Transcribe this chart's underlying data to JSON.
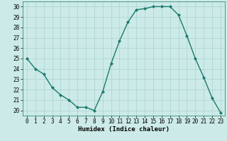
{
  "x": [
    0,
    1,
    2,
    3,
    4,
    5,
    6,
    7,
    8,
    9,
    10,
    11,
    12,
    13,
    14,
    15,
    16,
    17,
    18,
    19,
    20,
    21,
    22,
    23
  ],
  "y": [
    25.0,
    24.0,
    23.5,
    22.2,
    21.5,
    21.0,
    20.3,
    20.3,
    20.0,
    21.8,
    24.5,
    26.7,
    28.5,
    29.7,
    29.8,
    30.0,
    30.0,
    30.0,
    29.2,
    27.2,
    25.0,
    23.2,
    21.2,
    19.8
  ],
  "line_color": "#1a7a6e",
  "marker": "D",
  "marker_size": 2.0,
  "bg_color": "#cceae7",
  "grid_color": "#aad4cf",
  "xlabel": "Humidex (Indice chaleur)",
  "xlim": [
    -0.5,
    23.5
  ],
  "ylim": [
    19.5,
    30.5
  ],
  "yticks": [
    20,
    21,
    22,
    23,
    24,
    25,
    26,
    27,
    28,
    29,
    30
  ],
  "xticks": [
    0,
    1,
    2,
    3,
    4,
    5,
    6,
    7,
    8,
    9,
    10,
    11,
    12,
    13,
    14,
    15,
    16,
    17,
    18,
    19,
    20,
    21,
    22,
    23
  ],
  "xlabel_fontsize": 6.5,
  "tick_fontsize": 5.5,
  "line_width": 1.0
}
